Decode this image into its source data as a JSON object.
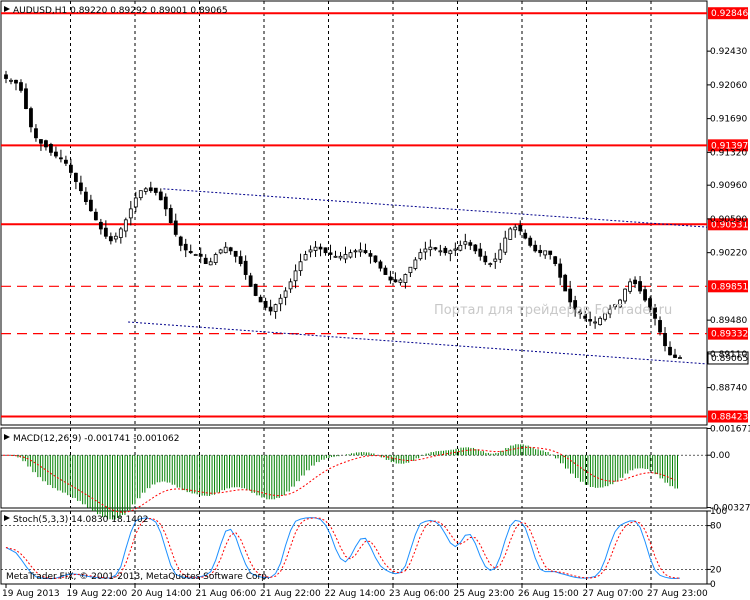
{
  "header": {
    "symbol_text": "AUDUSD,H1  0.89220 0.89292 0.89001 0.89065"
  },
  "watermark": "Портал для трейдеров ForTrader.ru",
  "copyright": "MetaTrader FIX, © 2001-2013, MetaQuotes Software Corp.",
  "colors": {
    "level": "#ff0000",
    "tag_bg": "#ff0000",
    "current_bg": "#ffffff",
    "trend": "#00008b",
    "macd_hist": "#008000",
    "macd_signal": "#ff0000",
    "stoch_main": "#1e90ff",
    "stoch_signal": "#ff0000"
  },
  "chart_data": [
    {
      "type": "candlestick",
      "title": "AUDUSD,H1  0.89220 0.89292 0.89001 0.89065",
      "ylim": [
        0.8833,
        0.9298
      ],
      "y_ticks": [
        "0.92846",
        "0.92430",
        "0.92060",
        "0.91690",
        "0.91320",
        "0.90960",
        "0.90590",
        "0.90220",
        "0.89851",
        "0.89480",
        "0.89110",
        "0.88740",
        "0.88423"
      ],
      "y_tick_values": [
        0.92846,
        0.9243,
        0.9206,
        0.9169,
        0.9132,
        0.9096,
        0.9059,
        0.9022,
        0.89851,
        0.8948,
        0.8911,
        0.8874,
        0.88423
      ],
      "x_ticks": [
        "19 Aug 2013",
        "19 Aug 22:00",
        "20 Aug 14:00",
        "21 Aug 06:00",
        "21 Aug 22:00",
        "22 Aug 14:00",
        "23 Aug 06:00",
        "25 Aug 23:00",
        "26 Aug 15:00",
        "27 Aug 07:00",
        "27 Aug 23:00"
      ],
      "levels": [
        {
          "label": "0.92846",
          "value": 0.92846,
          "style": "solid"
        },
        {
          "label": "0.91397",
          "value": 0.91397,
          "style": "solid"
        },
        {
          "label": "0.90531",
          "value": 0.90531,
          "style": "solid"
        },
        {
          "label": "0.89851",
          "value": 0.89851,
          "style": "dashed"
        },
        {
          "label": "0.89332",
          "value": 0.89332,
          "style": "dashed"
        },
        {
          "label": "0.88423",
          "value": 0.88423,
          "style": "solid"
        }
      ],
      "current_price": {
        "label": "0.89065",
        "value": 0.89065
      },
      "trendlines": [
        {
          "x1": 0.23,
          "y1": 0.9092,
          "x2": 1.0,
          "y2": 0.905
        },
        {
          "x1": 0.18,
          "y1": 0.8946,
          "x2": 1.0,
          "y2": 0.89
        }
      ],
      "close_series": [
        0.9213,
        0.9211,
        0.9208,
        0.92,
        0.918,
        0.916,
        0.9148,
        0.9142,
        0.9138,
        0.9132,
        0.9128,
        0.9125,
        0.912,
        0.911,
        0.91,
        0.909,
        0.9078,
        0.9068,
        0.9058,
        0.9048,
        0.904,
        0.9035,
        0.904,
        0.9048,
        0.9058,
        0.907,
        0.9082,
        0.909,
        0.9092,
        0.909,
        0.9088,
        0.908,
        0.907,
        0.9055,
        0.9042,
        0.903,
        0.9025,
        0.9022,
        0.902,
        0.9018,
        0.901,
        0.9012,
        0.902,
        0.9025,
        0.9028,
        0.9024,
        0.9018,
        0.901,
        0.8998,
        0.8985,
        0.8975,
        0.8968,
        0.8962,
        0.8958,
        0.8965,
        0.8972,
        0.898,
        0.899,
        0.9002,
        0.9012,
        0.902,
        0.9025,
        0.9028,
        0.9026,
        0.9022,
        0.902,
        0.9018,
        0.9018,
        0.902,
        0.9022,
        0.9024,
        0.9025,
        0.9022,
        0.9018,
        0.9012,
        0.9005,
        0.8998,
        0.8992,
        0.899,
        0.8992,
        0.8998,
        0.9006,
        0.9014,
        0.9022,
        0.9026,
        0.9028,
        0.9026,
        0.9024,
        0.9022,
        0.9024,
        0.9026,
        0.903,
        0.9034,
        0.903,
        0.9024,
        0.9018,
        0.9012,
        0.901,
        0.9015,
        0.9025,
        0.9038,
        0.9048,
        0.905,
        0.9046,
        0.9038,
        0.903,
        0.9024,
        0.9022,
        0.9024,
        0.902,
        0.901,
        0.8995,
        0.898,
        0.8968,
        0.896,
        0.8955,
        0.895,
        0.8947,
        0.8946,
        0.895,
        0.8955,
        0.896,
        0.8965,
        0.897,
        0.8982,
        0.899,
        0.8988,
        0.898,
        0.897,
        0.8962,
        0.895,
        0.8935,
        0.892,
        0.891,
        0.8907,
        0.8907
      ],
      "macd": {
        "label": "MACD(12,26,9) -0.001741 -0.001062",
        "ylim": [
          -0.0033,
          0.0017
        ],
        "y_ticks": [
          "0.001671",
          "0.00",
          "-0.003271"
        ],
        "y_tick_values": [
          0.001671,
          0.0,
          -0.003271
        ]
      },
      "stochastic": {
        "label": "Stoch(5,3,3) 14.0830 18.1402",
        "ylim": [
          0,
          100
        ],
        "y_ticks": [
          "100",
          "80",
          "20",
          "0"
        ],
        "y_tick_values": [
          100,
          80,
          20,
          0
        ]
      }
    }
  ]
}
